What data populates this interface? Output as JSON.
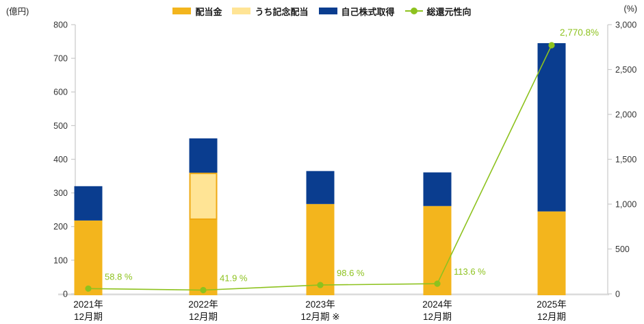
{
  "units": {
    "left": "(億円)",
    "right": "(%)"
  },
  "legend": [
    {
      "label": "配当金",
      "marker": "swatch",
      "color": "#F3B51D"
    },
    {
      "label": "うち記念配当",
      "marker": "swatch",
      "color": "#FFE495"
    },
    {
      "label": "自己株式取得",
      "marker": "swatch",
      "color": "#0A3D8F"
    },
    {
      "label": "総還元性向",
      "marker": "line-marker",
      "color": "#8DC21E"
    }
  ],
  "chart_data": {
    "type": "bar",
    "combo": "stacked bars (left axis) + line with markers (right axis)",
    "categories": [
      "2021年12月期",
      "2022年12月期",
      "2023年12月期※",
      "2024年12月期",
      "2025年12月期"
    ],
    "category_lines": [
      [
        "2021年",
        "12月期"
      ],
      [
        "2022年",
        "12月期"
      ],
      [
        "2023年",
        "12月期 ※"
      ],
      [
        "2024年",
        "12月期"
      ],
      [
        "2025年",
        "12月期"
      ]
    ],
    "series": [
      {
        "name": "配当金",
        "type": "bar",
        "axis": "left",
        "values": [
          218,
          360,
          267,
          261,
          245
        ],
        "color": "#F3B51D",
        "note": "total dividend incl. commemorative portion"
      },
      {
        "name": "うち記念配当",
        "type": "bar-subset",
        "axis": "left",
        "values": [
          0,
          140,
          0,
          0,
          0
        ],
        "color": "#FFE495",
        "border_color": "#EFA912",
        "note": "drawn as light segment inside dividend bar"
      },
      {
        "name": "自己株式取得",
        "type": "bar",
        "axis": "left",
        "values": [
          102,
          102,
          98,
          100,
          500
        ],
        "color": "#0A3D8F"
      },
      {
        "name": "総還元性向",
        "type": "line",
        "axis": "right",
        "values": [
          58.8,
          41.9,
          98.6,
          113.6,
          2770.8
        ],
        "color": "#8DC21E",
        "point_labels": [
          "58.8 %",
          "41.9 %",
          "98.6 %",
          "113.6 %",
          "2,770.8%"
        ]
      }
    ],
    "bar_totals": [
      320,
      462,
      365,
      361,
      745
    ],
    "left_axis": {
      "label": "(億円)",
      "min": 0,
      "max": 800,
      "step": 100,
      "ticks": [
        "0",
        "100",
        "200",
        "300",
        "400",
        "500",
        "600",
        "700",
        "800"
      ]
    },
    "right_axis": {
      "label": "(%)",
      "min": 0,
      "max": 3000,
      "step": 500,
      "ticks": [
        "0",
        "500",
        "1,000",
        "1,500",
        "2,000",
        "2,500",
        "3,000"
      ]
    },
    "grid": false,
    "legend_position": "top",
    "colors": {
      "axis_line": "#C9C9C9",
      "baseline": "#DCDCDC",
      "tick_text": "#333333",
      "category_text": "#111111"
    }
  }
}
